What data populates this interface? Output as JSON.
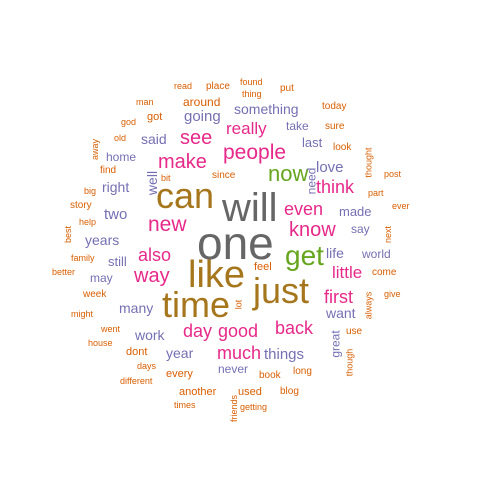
{
  "colors": {
    "gray": "#666666",
    "gold": "#a6761d",
    "magenta": "#e7298a",
    "green": "#66a61e",
    "purple": "#7570b3",
    "orange": "#d95f02",
    "orange_light": "#e6ab02"
  },
  "words": [
    {
      "text": "one",
      "weight": 100,
      "color": "gray"
    },
    {
      "text": "will",
      "weight": 95,
      "color": "gray"
    },
    {
      "text": "like",
      "weight": 90,
      "color": "gold"
    },
    {
      "text": "just",
      "weight": 88,
      "color": "gold"
    },
    {
      "text": "can",
      "weight": 85,
      "color": "gold"
    },
    {
      "text": "time",
      "weight": 85,
      "color": "gold"
    },
    {
      "text": "get",
      "weight": 70,
      "color": "green"
    },
    {
      "text": "now",
      "weight": 60,
      "color": "green"
    },
    {
      "text": "people",
      "weight": 55,
      "color": "magenta"
    },
    {
      "text": "know",
      "weight": 55,
      "color": "magenta"
    },
    {
      "text": "new",
      "weight": 55,
      "color": "magenta"
    },
    {
      "text": "also",
      "weight": 52,
      "color": "magenta"
    },
    {
      "text": "way",
      "weight": 52,
      "color": "magenta"
    },
    {
      "text": "make",
      "weight": 50,
      "color": "magenta"
    },
    {
      "text": "see",
      "weight": 50,
      "color": "magenta"
    },
    {
      "text": "even",
      "weight": 50,
      "color": "magenta"
    },
    {
      "text": "think",
      "weight": 50,
      "color": "magenta"
    },
    {
      "text": "back",
      "weight": 50,
      "color": "magenta"
    },
    {
      "text": "much",
      "weight": 50,
      "color": "magenta"
    },
    {
      "text": "first",
      "weight": 48,
      "color": "magenta"
    },
    {
      "text": "good",
      "weight": 50,
      "color": "magenta"
    },
    {
      "text": "day",
      "weight": 50,
      "color": "magenta"
    },
    {
      "text": "really",
      "weight": 45,
      "color": "magenta"
    },
    {
      "text": "little",
      "weight": 45,
      "color": "magenta"
    },
    {
      "text": "things",
      "weight": 40,
      "color": "purple"
    },
    {
      "text": "going",
      "weight": 38,
      "color": "purple"
    },
    {
      "text": "love",
      "weight": 38,
      "color": "purple"
    },
    {
      "text": "made",
      "weight": 36,
      "color": "purple"
    },
    {
      "text": "two",
      "weight": 36,
      "color": "purple"
    },
    {
      "text": "years",
      "weight": 34,
      "color": "purple"
    },
    {
      "text": "want",
      "weight": 34,
      "color": "purple"
    },
    {
      "text": "work",
      "weight": 34,
      "color": "purple"
    },
    {
      "text": "many",
      "weight": 34,
      "color": "purple"
    },
    {
      "text": "right",
      "weight": 32,
      "color": "purple"
    },
    {
      "text": "year",
      "weight": 32,
      "color": "purple"
    },
    {
      "text": "something",
      "weight": 32,
      "color": "purple"
    },
    {
      "text": "last",
      "weight": 32,
      "color": "purple"
    },
    {
      "text": "said",
      "weight": 32,
      "color": "purple"
    },
    {
      "text": "well",
      "weight": 32,
      "color": "purple"
    },
    {
      "text": "still",
      "weight": 30,
      "color": "purple"
    },
    {
      "text": "life",
      "weight": 30,
      "color": "purple"
    },
    {
      "text": "world",
      "weight": 28,
      "color": "purple"
    },
    {
      "text": "home",
      "weight": 28,
      "color": "purple"
    },
    {
      "text": "may",
      "weight": 28,
      "color": "purple"
    },
    {
      "text": "say",
      "weight": 28,
      "color": "purple"
    },
    {
      "text": "take",
      "weight": 28,
      "color": "purple"
    },
    {
      "text": "need",
      "weight": 28,
      "color": "purple"
    },
    {
      "text": "never",
      "weight": 28,
      "color": "purple"
    },
    {
      "text": "great",
      "weight": 28,
      "color": "purple"
    },
    {
      "text": "around",
      "weight": 30,
      "color": "orange"
    },
    {
      "text": "got",
      "weight": 28,
      "color": "orange"
    },
    {
      "text": "feel",
      "weight": 26,
      "color": "orange"
    },
    {
      "text": "dont",
      "weight": 26,
      "color": "orange"
    },
    {
      "text": "every",
      "weight": 26,
      "color": "orange"
    },
    {
      "text": "another",
      "weight": 26,
      "color": "orange"
    },
    {
      "text": "used",
      "weight": 26,
      "color": "orange"
    },
    {
      "text": "book",
      "weight": 24,
      "color": "orange"
    },
    {
      "text": "long",
      "weight": 24,
      "color": "orange"
    },
    {
      "text": "week",
      "weight": 22,
      "color": "orange"
    },
    {
      "text": "find",
      "weight": 22,
      "color": "orange"
    },
    {
      "text": "story",
      "weight": 22,
      "color": "orange"
    },
    {
      "text": "family",
      "weight": 20,
      "color": "orange"
    },
    {
      "text": "went",
      "weight": 20,
      "color": "orange"
    },
    {
      "text": "house",
      "weight": 20,
      "color": "orange"
    },
    {
      "text": "days",
      "weight": 20,
      "color": "orange"
    },
    {
      "text": "different",
      "weight": 20,
      "color": "orange"
    },
    {
      "text": "times",
      "weight": 20,
      "color": "orange"
    },
    {
      "text": "getting",
      "weight": 20,
      "color": "orange"
    },
    {
      "text": "blog",
      "weight": 20,
      "color": "orange"
    },
    {
      "text": "friends",
      "weight": 20,
      "color": "orange"
    },
    {
      "text": "lot",
      "weight": 18,
      "color": "orange"
    },
    {
      "text": "though",
      "weight": 20,
      "color": "orange"
    },
    {
      "text": "use",
      "weight": 22,
      "color": "orange"
    },
    {
      "text": "give",
      "weight": 18,
      "color": "orange"
    },
    {
      "text": "come",
      "weight": 22,
      "color": "orange"
    },
    {
      "text": "always",
      "weight": 20,
      "color": "orange"
    },
    {
      "text": "next",
      "weight": 20,
      "color": "orange"
    },
    {
      "text": "ever",
      "weight": 18,
      "color": "orange"
    },
    {
      "text": "part",
      "weight": 20,
      "color": "orange"
    },
    {
      "text": "post",
      "weight": 20,
      "color": "orange"
    },
    {
      "text": "thought",
      "weight": 20,
      "color": "orange"
    },
    {
      "text": "look",
      "weight": 22,
      "color": "orange"
    },
    {
      "text": "sure",
      "weight": 22,
      "color": "orange"
    },
    {
      "text": "today",
      "weight": 22,
      "color": "orange"
    },
    {
      "text": "put",
      "weight": 22,
      "color": "orange"
    },
    {
      "text": "found",
      "weight": 20,
      "color": "orange"
    },
    {
      "text": "thing",
      "weight": 20,
      "color": "orange"
    },
    {
      "text": "place",
      "weight": 20,
      "color": "orange"
    },
    {
      "text": "read",
      "weight": 20,
      "color": "orange"
    },
    {
      "text": "man",
      "weight": 20,
      "color": "orange"
    },
    {
      "text": "god",
      "weight": 20,
      "color": "orange"
    },
    {
      "text": "old",
      "weight": 20,
      "color": "orange"
    },
    {
      "text": "away",
      "weight": 20,
      "color": "orange"
    },
    {
      "text": "big",
      "weight": 20,
      "color": "orange"
    },
    {
      "text": "help",
      "weight": 20,
      "color": "orange"
    },
    {
      "text": "best",
      "weight": 20,
      "color": "orange"
    },
    {
      "text": "better",
      "weight": 20,
      "color": "orange"
    },
    {
      "text": "might",
      "weight": 20,
      "color": "orange"
    },
    {
      "text": "bit",
      "weight": 18,
      "color": "orange"
    },
    {
      "text": "since",
      "weight": 20,
      "color": "orange"
    }
  ]
}
